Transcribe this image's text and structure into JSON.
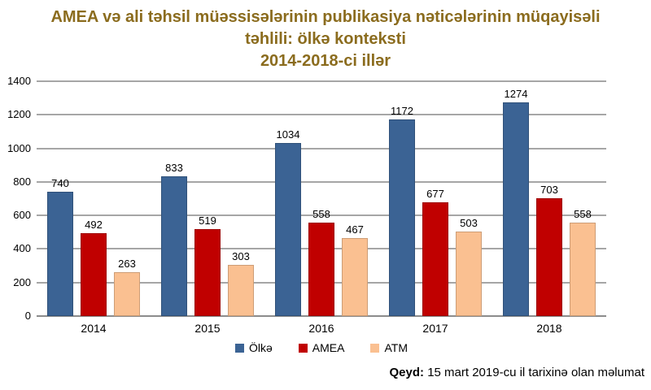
{
  "chart_data": {
    "type": "bar",
    "title": "AMEA və ali təhsil müəssisələrinin publikasiya nəticələrinin müqayisəli təhlili: ölkə konteksti 2014-2018-ci illər",
    "title_lines": [
      "AMEA və ali təhsil müəssisələrinin publikasiya nəticələrinin müqayisəli",
      "təhlili: ölkə konteksti",
      "2014-2018-ci illər"
    ],
    "title_color": "#8b6c1e",
    "categories": [
      "2014",
      "2015",
      "2016",
      "2017",
      "2018"
    ],
    "series": [
      {
        "name": "Ölkə",
        "color": "#3b6394",
        "values": [
          740,
          833,
          1034,
          1172,
          1274
        ]
      },
      {
        "name": "AMEA",
        "color": "#c00000",
        "values": [
          492,
          519,
          558,
          677,
          703
        ]
      },
      {
        "name": "ATM",
        "color": "#fac091",
        "values": [
          263,
          303,
          467,
          503,
          558
        ]
      }
    ],
    "ylim": [
      0,
      1400
    ],
    "yticks": [
      0,
      200,
      400,
      600,
      800,
      1000,
      1200,
      1400
    ],
    "grid": true,
    "gridline_color": "#a6a6a6",
    "data_labels": true,
    "legend_position": "bottom"
  },
  "footer": {
    "label": "Qeyd:",
    "text": " 15 mart 2019-cu il tarixinə olan məlumat"
  }
}
